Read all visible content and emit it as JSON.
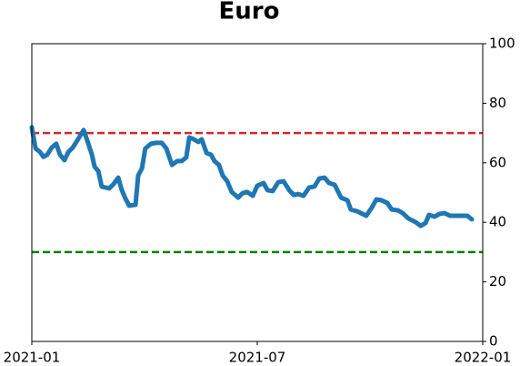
{
  "chart_data": {
    "type": "line",
    "title": "Euro",
    "x": [
      0,
      0.1,
      0.22,
      0.31,
      0.41,
      0.53,
      0.65,
      0.75,
      0.87,
      0.97,
      1.09,
      1.23,
      1.38,
      1.48,
      1.6,
      1.67,
      1.77,
      1.86,
      2.06,
      2.18,
      2.3,
      2.39,
      2.49,
      2.59,
      2.76,
      2.83,
      2.93,
      3.02,
      3.17,
      3.31,
      3.46,
      3.58,
      3.73,
      3.87,
      3.99,
      4.11,
      4.19,
      4.31,
      4.43,
      4.52,
      4.65,
      4.77,
      4.86,
      4.98,
      5.08,
      5.2,
      5.32,
      5.49,
      5.61,
      5.73,
      5.88,
      6,
      6.17,
      6.27,
      6.41,
      6.56,
      6.7,
      6.85,
      6.97,
      7.09,
      7.23,
      7.38,
      7.52,
      7.65,
      7.79,
      7.91,
      8.06,
      8.23,
      8.4,
      8.49,
      8.66,
      8.9,
      9.05,
      9.17,
      9.31,
      9.46,
      9.58,
      9.75,
      9.87,
      10.02,
      10.21,
      10.35,
      10.48,
      10.57,
      10.72,
      10.84,
      10.98,
      11.13,
      11.27,
      11.42,
      11.59,
      11.71
    ],
    "series": [
      {
        "color": "#1f77b4",
        "values": [
          71.9,
          64.8,
          63.6,
          62,
          62.7,
          65.1,
          66.4,
          62.7,
          60.9,
          63.6,
          65.1,
          67.9,
          71,
          67.3,
          62.7,
          58.7,
          57.2,
          52,
          51.4,
          52.9,
          55,
          51,
          48,
          45.6,
          45.9,
          55.7,
          58.1,
          64.8,
          66.4,
          66.7,
          66.7,
          64.8,
          59.3,
          60.6,
          60.6,
          61.8,
          68.5,
          67.9,
          67,
          67.9,
          63.3,
          62.7,
          60.6,
          59.3,
          55.7,
          53.8,
          50.2,
          48.3,
          49.8,
          50.2,
          48.9,
          52.3,
          53.2,
          50.8,
          50.5,
          53.5,
          53.8,
          50.8,
          49.2,
          49.5,
          48.9,
          51.7,
          52,
          54.7,
          55,
          53.2,
          52.6,
          48.3,
          47.4,
          44.3,
          43.7,
          42.2,
          45,
          47.7,
          47.4,
          46.5,
          44.3,
          44,
          43.1,
          41.3,
          40.1,
          38.8,
          39.8,
          42.5,
          41.9,
          42.8,
          43.1,
          42.2,
          42.2,
          42.2,
          42.2,
          41
        ]
      }
    ],
    "xlim": [
      0,
      12
    ],
    "xticks": [
      {
        "value": 0,
        "label": "2021-01"
      },
      {
        "value": 6,
        "label": "2021-07"
      },
      {
        "value": 12,
        "label": "2022-01"
      }
    ],
    "ylim": [
      0,
      100
    ],
    "yticks": [
      0,
      20,
      40,
      60,
      80,
      100
    ],
    "y_axis_side": "right",
    "hlines": [
      {
        "value": 70,
        "color": "#d62728"
      },
      {
        "value": 30,
        "color": "#008000"
      }
    ]
  }
}
